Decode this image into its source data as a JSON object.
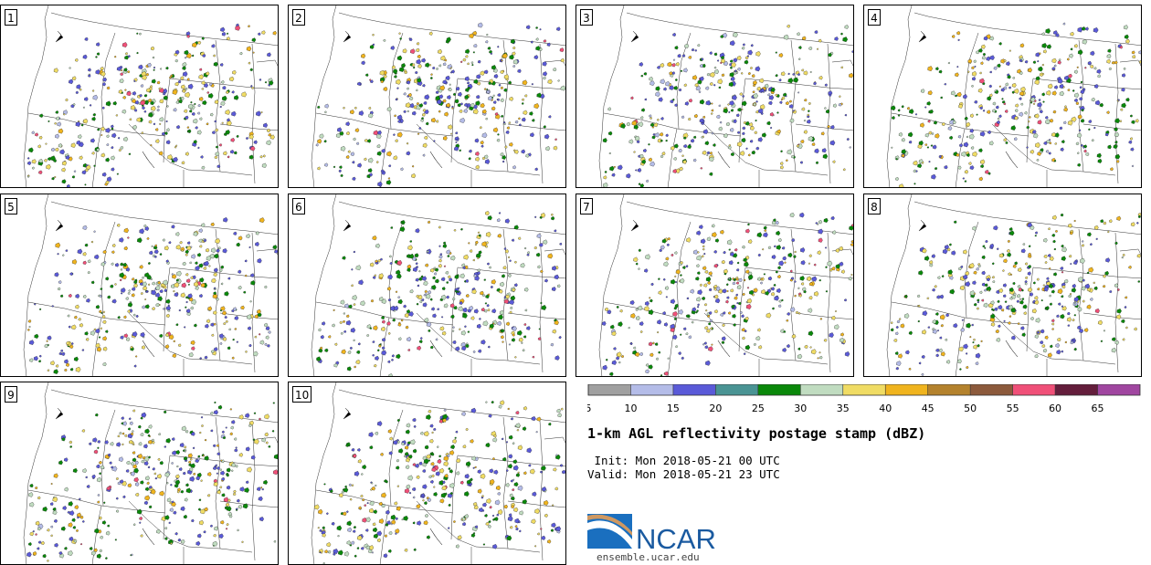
{
  "panels": [
    {
      "label": "1",
      "seed": 11
    },
    {
      "label": "2",
      "seed": 23
    },
    {
      "label": "3",
      "seed": 37
    },
    {
      "label": "4",
      "seed": 41
    },
    {
      "label": "5",
      "seed": 53
    },
    {
      "label": "6",
      "seed": 67
    },
    {
      "label": "7",
      "seed": 71
    },
    {
      "label": "8",
      "seed": 83
    },
    {
      "label": "9",
      "seed": 97
    },
    {
      "label": "10",
      "seed": 101
    }
  ],
  "colorbar": {
    "ticks": [
      "5",
      "10",
      "15",
      "20",
      "25",
      "30",
      "35",
      "40",
      "45",
      "50",
      "55",
      "60",
      "65"
    ],
    "colors": [
      "#a0a0a0",
      "#b4bce8",
      "#5a5ad8",
      "#4a9494",
      "#0a880a",
      "#c0dcc0",
      "#f0dc64",
      "#f0b41e",
      "#b4822d",
      "#8c5a3c",
      "#f05078",
      "#641e3c",
      "#a046a0"
    ]
  },
  "title": "1-km AGL reflectivity postage stamp (dBZ)",
  "init": " Init: Mon 2018-05-21 00 UTC",
  "valid": "Valid: Mon 2018-05-21 23 UTC",
  "logo": {
    "text": "NCAR",
    "color": "#1a5aa0"
  },
  "site": "ensemble.ucar.edu"
}
